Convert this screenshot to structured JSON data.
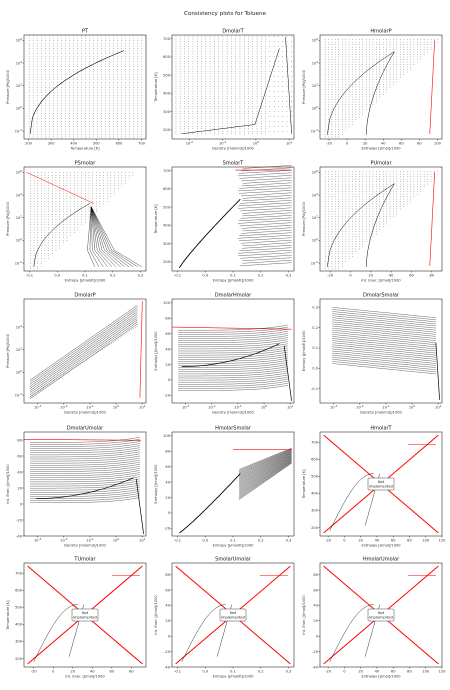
{
  "figure": {
    "suptitle": "Consistency plots for Toluene"
  },
  "colors": {
    "data": "#000000",
    "boundary": "#ff0000",
    "frame": "#000000",
    "box_border": "#444444"
  },
  "chart_data": [
    {
      "type": "scatter",
      "title": "PT",
      "xlabel": "Temperature [K]",
      "ylabel": "Pressure [Pa]/1000",
      "xlim": [
        180,
        720
      ],
      "yscale": "log",
      "ylim": [
        0.002,
        3000000
      ],
      "xticks": [
        "200",
        "300",
        "400",
        "500",
        "600",
        "700"
      ],
      "yticks": [
        "10^-2",
        "10^0",
        "10^2",
        "10^4",
        "10^6"
      ],
      "implemented": true
    },
    {
      "type": "scatter",
      "title": "DmolarT",
      "xlabel": "Density [mol/m3]/1000",
      "ylabel": "Temperature [K]",
      "xscale": "log",
      "xlim": [
        0.003,
        14
      ],
      "ylim": [
        150,
        720
      ],
      "xticks": [
        "10^-2",
        "10^-1",
        "10^0",
        "10^1"
      ],
      "yticks": [
        "200",
        "300",
        "400",
        "500",
        "600",
        "700"
      ],
      "implemented": true
    },
    {
      "type": "scatter",
      "title": "HmolarP",
      "xlabel": "Enthalpy [J/mol]/1000",
      "ylabel": "Pressure [Pa]/1000",
      "xlim": [
        -30,
        105
      ],
      "yscale": "log",
      "ylim": [
        0.002,
        3000000
      ],
      "xticks": [
        "-20",
        "0",
        "20",
        "40",
        "60",
        "80",
        "100"
      ],
      "yticks": [
        "10^-2",
        "10^0",
        "10^2",
        "10^4",
        "10^6"
      ],
      "implemented": true
    },
    {
      "type": "scatter",
      "title": "PSmolar",
      "xlabel": "Entropy [J/mol/K]/1000",
      "ylabel": "Pressure [Pa]/1000",
      "xlim": [
        -0.12,
        0.32
      ],
      "yscale": "log",
      "ylim": [
        0.002,
        3000000
      ],
      "xticks": [
        "-0.1",
        "0.0",
        "0.1",
        "0.2",
        "0.3"
      ],
      "yticks": [
        "10^-2",
        "10^0",
        "10^2",
        "10^4",
        "10^6"
      ],
      "implemented": true
    },
    {
      "type": "scatter",
      "title": "SmolarT",
      "xlabel": "Entropy [J/mol/K]/1000",
      "ylabel": "Temperature [K]",
      "xlim": [
        -0.12,
        0.32
      ],
      "ylim": [
        150,
        720
      ],
      "xticks": [
        "-0.1",
        "0.0",
        "0.1",
        "0.2",
        "0.3"
      ],
      "yticks": [
        "200",
        "300",
        "400",
        "500",
        "600",
        "700"
      ],
      "implemented": true
    },
    {
      "type": "scatter",
      "title": "PUmolar",
      "xlabel": "Int. Ener. [J/mol]/1000",
      "ylabel": "Pressure [Pa]/1000",
      "xlim": [
        -30,
        90
      ],
      "yscale": "log",
      "ylim": [
        0.002,
        3000000
      ],
      "xticks": [
        "-20",
        "0",
        "20",
        "40",
        "60",
        "80"
      ],
      "yticks": [
        "10^-2",
        "10^0",
        "10^2",
        "10^4",
        "10^6"
      ],
      "implemented": true
    },
    {
      "type": "scatter",
      "title": "DmolarP",
      "xlabel": "Density [mol/m3]/1000",
      "ylabel": "Pressure [Pa]/1000",
      "xscale": "log",
      "xlim": [
        0.0003,
        14
      ],
      "yscale": "log",
      "ylim": [
        0.002,
        3000000
      ],
      "xticks": [
        "10^-3",
        "10^-2",
        "10^-1",
        "10^0",
        "10^1"
      ],
      "yticks": [
        "10^-2",
        "10^0",
        "10^2",
        "10^4"
      ],
      "implemented": true
    },
    {
      "type": "scatter",
      "title": "DmolarHmolar",
      "xlabel": "Density [mol/m3]/1000",
      "ylabel": "Enthalpy [J/mol]/1000",
      "xscale": "log",
      "xlim": [
        0.0003,
        14
      ],
      "ylim": [
        -30,
        105
      ],
      "xticks": [
        "10^-3",
        "10^-2",
        "10^-1",
        "10^0",
        "10^1"
      ],
      "yticks": [
        "-20",
        "0",
        "20",
        "40",
        "60",
        "80",
        "100"
      ],
      "implemented": true
    },
    {
      "type": "scatter",
      "title": "DmolarSmolar",
      "xlabel": "Density [mol/m3]/1000",
      "ylabel": "Entropy [J/mol/K]/1000",
      "xscale": "log",
      "xlim": [
        0.0003,
        14
      ],
      "ylim": [
        -0.17,
        0.34
      ],
      "xticks": [
        "10^-3",
        "10^-2",
        "10^-1",
        "10^0",
        "10^1"
      ],
      "yticks": [
        "-0.1",
        "0.0",
        "0.1",
        "0.2",
        "0.3"
      ],
      "implemented": true
    },
    {
      "type": "scatter",
      "title": "DmolarUmolar",
      "xlabel": "Density [mol/m3]/1000",
      "ylabel": "Int. Ener. [J/mol]/1000",
      "xscale": "log",
      "xlim": [
        0.0003,
        14
      ],
      "ylim": [
        -40,
        90
      ],
      "xticks": [
        "10^-3",
        "10^-2",
        "10^-1",
        "10^0",
        "10^1"
      ],
      "yticks": [
        "-40",
        "-20",
        "0",
        "20",
        "40",
        "60",
        "80"
      ],
      "implemented": true
    },
    {
      "type": "scatter",
      "title": "HmolarSmolar",
      "xlabel": "Entropy [J/mol/K]/1000",
      "ylabel": "Enthalpy [J/mol]/1000",
      "xlim": [
        -0.12,
        0.32
      ],
      "ylim": [
        -30,
        105
      ],
      "xticks": [
        "-0.1",
        "0.0",
        "0.1",
        "0.2",
        "0.3"
      ],
      "yticks": [
        "-20",
        "0",
        "20",
        "40",
        "60",
        "80",
        "100"
      ],
      "implemented": true
    },
    {
      "type": "scatter",
      "title": "HmolarT",
      "xlabel": "Enthalpy [J/mol]/1000",
      "ylabel": "Temperature [K]",
      "xlim": [
        -30,
        120
      ],
      "ylim": [
        150,
        760
      ],
      "xticks": [
        "-20",
        "0",
        "20",
        "40",
        "60",
        "80",
        "100",
        "120"
      ],
      "yticks": [
        "200",
        "300",
        "400",
        "500",
        "600",
        "700"
      ],
      "implemented": false,
      "note": "Not\nimplemented"
    },
    {
      "type": "scatter",
      "title": "TUmolar",
      "xlabel": "Int. Ener. [J/mol]/1000",
      "ylabel": "Temperature [K]",
      "xlim": [
        -30,
        95
      ],
      "ylim": [
        150,
        760
      ],
      "xticks": [
        "-20",
        "0",
        "20",
        "40",
        "60",
        "80"
      ],
      "yticks": [
        "200",
        "300",
        "400",
        "500",
        "600",
        "700"
      ],
      "implemented": false,
      "note": "Not\nimplemented"
    },
    {
      "type": "scatter",
      "title": "SmolarUmolar",
      "xlabel": "Entropy [J/mol/K]/1000",
      "ylabel": "Int. Ener. [J/mol]/1000",
      "xlim": [
        -0.12,
        0.32
      ],
      "ylim": [
        -40,
        95
      ],
      "xticks": [
        "-0.1",
        "0.0",
        "0.1",
        "0.2",
        "0.3"
      ],
      "yticks": [
        "-40",
        "-20",
        "0",
        "20",
        "40",
        "60",
        "80"
      ],
      "implemented": false,
      "note": "Not\nimplemented"
    },
    {
      "type": "scatter",
      "title": "HmolarUmolar",
      "xlabel": "Enthalpy [J/mol]/1000",
      "ylabel": "Int. Ener. [J/mol]/1000",
      "xlim": [
        -30,
        120
      ],
      "ylim": [
        -40,
        95
      ],
      "xticks": [
        "-20",
        "0",
        "20",
        "40",
        "60",
        "80",
        "100",
        "120"
      ],
      "yticks": [
        "-40",
        "-20",
        "0",
        "20",
        "40",
        "60",
        "80"
      ],
      "implemented": false,
      "note": "Not\nimplemented"
    }
  ]
}
